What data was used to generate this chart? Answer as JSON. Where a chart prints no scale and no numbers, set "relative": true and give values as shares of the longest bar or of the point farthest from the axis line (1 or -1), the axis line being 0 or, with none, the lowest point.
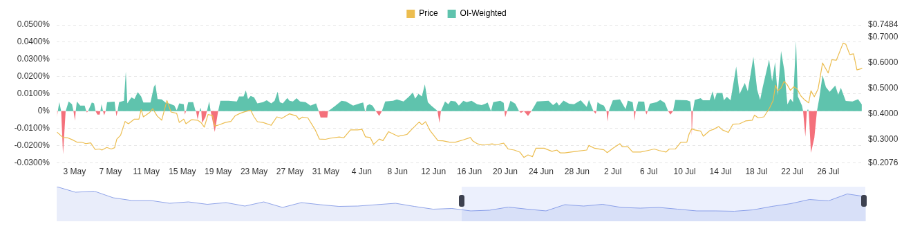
{
  "chart_data": [
    {
      "type": "area",
      "legend": "top",
      "grid": "y",
      "xlim": [
        "--05-01T00:00",
        "--07-29T20:00"
      ],
      "xticks": [
        {
          "value": "--05-03",
          "label": "3 May"
        },
        {
          "value": "--05-07",
          "label": "7 May"
        },
        {
          "value": "--05-11",
          "label": "11 May"
        },
        {
          "value": "--05-15",
          "label": "15 May"
        },
        {
          "value": "--05-19",
          "label": "19 May"
        },
        {
          "value": "--05-23",
          "label": "23 May"
        },
        {
          "value": "--05-27",
          "label": "27 May"
        },
        {
          "value": "--05-31",
          "label": "31 May"
        },
        {
          "value": "--06-04",
          "label": "4 Jun"
        },
        {
          "value": "--06-08",
          "label": "8 Jun"
        },
        {
          "value": "--06-12",
          "label": "12 Jun"
        },
        {
          "value": "--06-16",
          "label": "16 Jun"
        },
        {
          "value": "--06-20",
          "label": "20 Jun"
        },
        {
          "value": "--06-24",
          "label": "24 Jun"
        },
        {
          "value": "--06-28",
          "label": "28 Jun"
        },
        {
          "value": "--07-02",
          "label": "2 Jul"
        },
        {
          "value": "--07-06",
          "label": "6 Jul"
        },
        {
          "value": "--07-10",
          "label": "10 Jul"
        },
        {
          "value": "--07-14",
          "label": "14 Jul"
        },
        {
          "value": "--07-18",
          "label": "18 Jul"
        },
        {
          "value": "--07-22",
          "label": "22 Jul"
        },
        {
          "value": "--07-26",
          "label": "26 Jul"
        }
      ],
      "ylim": [
        -0.03,
        0.05
      ],
      "yticks": [
        {
          "value": -0.03,
          "label": "-0.0300%"
        },
        {
          "value": -0.02,
          "label": "-0.0200%"
        },
        {
          "value": -0.01,
          "label": "-0.0100%"
        },
        {
          "value": 0,
          "label": "0%"
        },
        {
          "value": 0.01,
          "label": "0.0100%"
        },
        {
          "value": 0.02,
          "label": "0.0200%"
        },
        {
          "value": 0.03,
          "label": "0.0300%"
        },
        {
          "value": 0.04,
          "label": "0.0400%"
        },
        {
          "value": 0.05,
          "label": "0.0500%"
        }
      ],
      "y2lim": [
        0.2076,
        0.7484
      ],
      "y2ticks": [
        {
          "value": 0.2076,
          "label": "$0.2076"
        },
        {
          "value": 0.3,
          "label": "$0.3000"
        },
        {
          "value": 0.4,
          "label": "$0.4000"
        },
        {
          "value": 0.5,
          "label": "$0.5000"
        },
        {
          "value": 0.6,
          "label": "$0.6000"
        },
        {
          "value": 0.7,
          "label": "$0.7000"
        },
        {
          "value": 0.7484,
          "label": "$0.7484"
        }
      ],
      "series": [
        {
          "name": "Price",
          "type": "line",
          "axis": "y2",
          "color": "#ecbd4f",
          "x": [
            "--05-01T01:00",
            "--05-01T17:00",
            "--05-02T05:00",
            "--05-02T17:00",
            "--05-03T06:00",
            "--05-03T18:00",
            "--05-04T06:00",
            "--05-04T19:00",
            "--05-05T07:00",
            "--05-05T19:00",
            "--05-06T01:00",
            "--05-06T14:00",
            "--05-07T02:00",
            "--05-07T11:00",
            "--05-07T17:00",
            "--05-08T03:00",
            "--05-08T15:00",
            "--05-09T00:00",
            "--05-09T16:00",
            "--05-10T04:00",
            "--05-10T10:00",
            "--05-10T16:00",
            "--05-11T08:00",
            "--05-11T17:00",
            "--05-12T05:00",
            "--05-12T17:00",
            "--05-13T07:00",
            "--05-13T18:00",
            "--05-14T09:00",
            "--05-14T16:00",
            "--05-15T04:00",
            "--05-15T10:00",
            "--05-16T01:00",
            "--05-16T17:00",
            "--05-17T02:00",
            "--05-17T11:00",
            "--05-17T21:00",
            "--05-18T09:00",
            "--05-18T15:00",
            "--05-19T03:00",
            "--05-19T19:00",
            "--05-20T10:00",
            "--05-20T22:00",
            "--05-21T11:00",
            "--05-21T23:00",
            "--05-22T15:00",
            "--05-23T00:00",
            "--05-23T09:00",
            "--05-24T00:00",
            "--05-24T22:00",
            "--05-25T13:00",
            "--05-26T02:00",
            "--05-26T23:00",
            "--05-27T18:00",
            "--05-28T00:00",
            "--05-28T09:00",
            "--05-29T00:00",
            "--05-29T19:00",
            "--05-30T07:00",
            "--05-30T23:00",
            "--05-31T11:00",
            "--06-01T12:00",
            "--06-02T00:00",
            "--06-02T18:00",
            "--06-03T13:00",
            "--06-04T01:00",
            "--06-04T10:00",
            "--06-04T23:00",
            "--06-05T08:00",
            "--06-05T23:00",
            "--06-06T09:00",
            "--06-07T00:00",
            "--06-08T01:00",
            "--06-09T01:00",
            "--06-09T14:00",
            "--06-10T10:00",
            "--06-10T17:00",
            "--06-11T03:00",
            "--06-11T15:00",
            "--06-12T12:00",
            "--06-13T01:00",
            "--06-13T19:00",
            "--06-14T11:00",
            "--06-15T08:00",
            "--06-16T03:00",
            "--06-16T09:00",
            "--06-16T21:00",
            "--06-17T09:00",
            "--06-17T19:00",
            "--06-18T13:00",
            "--06-19T01:00",
            "--06-19T20:00",
            "--06-20T08:00",
            "--06-21T00:00",
            "--06-21T15:00",
            "--06-22T02:00",
            "--06-22T13:00",
            "--06-23T01:00",
            "--06-23T10:00",
            "--06-24T08:00",
            "--06-25T05:00",
            "--06-25T18:00",
            "--06-26T03:00",
            "--06-26T15:00",
            "--06-27T22:00",
            "--06-29T02:00",
            "--06-29T08:00",
            "--06-29T23:00",
            "--07-01T00:00",
            "--07-01T09:00",
            "--07-02T00:00",
            "--07-02T19:00",
            "--07-03T01:00",
            "--07-03T16:00",
            "--07-04T05:00",
            "--07-05T02:00",
            "--07-05T21:00",
            "--07-06T15:00",
            "--07-07T04:00",
            "--07-07T22:00",
            "--07-08T07:00",
            "--07-08T23:00",
            "--07-09T14:00",
            "--07-10T06:00",
            "--07-10T12:00",
            "--07-10T19:00",
            "--07-11T03:00",
            "--07-11T19:00",
            "--07-12T02:00",
            "--07-12T19:00",
            "--07-13T05:00",
            "--07-13T19:00",
            "--07-14T05:00",
            "--07-14T21:00",
            "--07-15T09:00",
            "--07-16T03:00",
            "--07-16T19:00",
            "--07-17T13:00",
            "--07-17T19:00",
            "--07-18T05:00",
            "--07-18T20:00",
            "--07-19T11:00",
            "--07-19T21:00",
            "--07-20T03:00",
            "--07-20T09:00",
            "--07-20T18:00",
            "--07-21T02:00",
            "--07-21T10:00",
            "--07-21T19:00",
            "--07-22T04:00",
            "--07-22T13:00",
            "--07-22T23:00",
            "--07-23T08:00",
            "--07-23T20:00",
            "--07-24T02:00",
            "--07-24T11:00",
            "--07-24T21:00",
            "--07-25T09:00",
            "--07-26T00:00",
            "--07-26T10:00",
            "--07-26T22:00",
            "--07-27T16:00",
            "--07-27T23:00",
            "--07-28T10:00",
            "--07-28T20:00",
            "--07-29T05:00",
            "--07-29T19:00"
          ],
          "values": [
            0.328,
            0.307,
            0.306,
            0.299,
            0.289,
            0.289,
            0.283,
            0.286,
            0.26,
            0.262,
            0.258,
            0.268,
            0.262,
            0.267,
            0.301,
            0.316,
            0.37,
            0.361,
            0.379,
            0.379,
            0.416,
            0.388,
            0.404,
            0.42,
            0.391,
            0.375,
            0.452,
            0.407,
            0.402,
            0.366,
            0.379,
            0.361,
            0.377,
            0.375,
            0.366,
            0.348,
            0.397,
            0.393,
            0.352,
            0.357,
            0.366,
            0.37,
            0.393,
            0.402,
            0.408,
            0.414,
            0.388,
            0.369,
            0.366,
            0.355,
            0.388,
            0.382,
            0.4,
            0.391,
            0.378,
            0.387,
            0.384,
            0.339,
            0.301,
            0.3,
            0.304,
            0.309,
            0.306,
            0.337,
            0.337,
            0.339,
            0.31,
            0.307,
            0.28,
            0.301,
            0.295,
            0.33,
            0.312,
            0.319,
            0.339,
            0.368,
            0.357,
            0.369,
            0.334,
            0.295,
            0.294,
            0.289,
            0.289,
            0.298,
            0.307,
            0.294,
            0.283,
            0.278,
            0.279,
            0.282,
            0.279,
            0.285,
            0.262,
            0.258,
            0.25,
            0.229,
            0.239,
            0.232,
            0.265,
            0.265,
            0.253,
            0.258,
            0.247,
            0.247,
            0.253,
            0.258,
            0.276,
            0.265,
            0.259,
            0.248,
            0.265,
            0.283,
            0.271,
            0.271,
            0.25,
            0.25,
            0.256,
            0.262,
            0.256,
            0.25,
            0.262,
            0.262,
            0.289,
            0.289,
            0.321,
            0.341,
            0.337,
            0.332,
            0.312,
            0.334,
            0.339,
            0.35,
            0.337,
            0.327,
            0.359,
            0.361,
            0.372,
            0.375,
            0.395,
            0.384,
            0.388,
            0.422,
            0.453,
            0.512,
            0.49,
            0.501,
            0.527,
            0.515,
            0.492,
            0.506,
            0.497,
            0.47,
            0.456,
            0.443,
            0.49,
            0.467,
            0.497,
            0.599,
            0.56,
            0.612,
            0.61,
            0.677,
            0.673,
            0.632,
            0.635,
            0.572,
            0.578
          ]
        },
        {
          "name": "OI-Weighted",
          "type": "area",
          "color": "#5fc3ad",
          "x": [
            "--05-01T03:00",
            "--05-01T07:00",
            "--05-01T12:00",
            "--05-02T00:00",
            "--05-02T08:00",
            "--05-02T17:00",
            "--05-02T21:00",
            "--05-03T03:00",
            "--05-03T06:00",
            "--05-03T15:00",
            "--05-04T03:00",
            "--05-04T07:00",
            "--05-04T12:00",
            "--05-04T22:00",
            "--05-05T04:00",
            "--05-05T08:00",
            "--05-05T21:00",
            "--05-06T00:00",
            "--05-06T04:00",
            "--05-06T11:00",
            "--05-06T15:00",
            "--05-07T11:00",
            "--05-07T14:00",
            "--05-07T19:00",
            "--05-07T23:00",
            "--05-08T12:00",
            "--05-08T17:00",
            "--05-08T21:00",
            "--05-09T08:00",
            "--05-09T16:00",
            "--05-10T01:00",
            "--05-10T10:00",
            "--05-10T16:00",
            "--05-11T11:00",
            "--05-11T20:00",
            "--05-12T00:00",
            "--05-12T06:00",
            "--05-12T17:00",
            "--05-13T03:00",
            "--05-13T15:00",
            "--05-14T03:00",
            "--05-14T09:00",
            "--05-14T16:00",
            "--05-15T04:00",
            "--05-15T06:00",
            "--05-15T10:00",
            "--05-15T16:00",
            "--05-16T05:00",
            "--05-16T11:00",
            "--05-16T13:00",
            "--05-16T22:00",
            "--05-17T01:00",
            "--05-17T03:00",
            "--05-17T18:00",
            "--05-18T00:00",
            "--05-18T04:00",
            "--05-19T00:00",
            "--05-19T06:00",
            "--05-20T04:00",
            "--05-21T02:00",
            "--05-21T08:00",
            "--05-21T20:00",
            "--05-22T02:00",
            "--05-22T08:00",
            "--05-22T15:00",
            "--05-23T00:00",
            "--05-23T09:00",
            "--05-24T00:00",
            "--05-24T10:00",
            "--05-24T22:00",
            "--05-25T07:00",
            "--05-25T15:00",
            "--05-25T21:00",
            "--05-26T05:00",
            "--05-26T17:00",
            "--05-26T23:00",
            "--05-27T08:00",
            "--05-27T18:00",
            "--05-28T03:00",
            "--05-28T18:00",
            "--05-29T07:00",
            "--05-29T22:00",
            "--05-30T05:00",
            "--05-31T06:00",
            "--05-31T14:00",
            "--06-01T02:00",
            "--06-01T18:00",
            "--06-02T06:00",
            "--06-03T01:00",
            "--06-03T19:00",
            "--06-04T04:00",
            "--06-04T09:00",
            "--06-04T11:00",
            "--06-04T14:00",
            "--06-04T21:00",
            "--06-05T05:00",
            "--06-05T14:00",
            "--06-06T06:00",
            "--06-06T15:00",
            "--06-07T12:00",
            "--06-07T22:00",
            "--06-08T16:00",
            "--06-09T07:00",
            "--06-09T17:00",
            "--06-09T23:00",
            "--06-10T08:00",
            "--06-10T17:00",
            "--06-11T01:00",
            "--06-11T09:00",
            "--06-11T18:00",
            "--06-12T09:00",
            "--06-12T11:00",
            "--06-12T20:00",
            "--06-13T07:00",
            "--06-13T16:00",
            "--06-13T22:00",
            "--06-14T11:00",
            "--06-14T20:00",
            "--06-15T08:00",
            "--06-15T17:00",
            "--06-16T06:00",
            "--06-16T21:00",
            "--06-17T09:00",
            "--06-17T19:00",
            "--06-18T01:00",
            "--06-18T10:00",
            "--06-18T16:00",
            "--06-19T11:00",
            "--06-19T20:00",
            "--06-19T22:00",
            "--06-20T05:00",
            "--06-20T14:00",
            "--06-21T03:00",
            "--06-21T13:00",
            "--06-22T02:00",
            "--06-22T22:00",
            "--06-23T13:00",
            "--06-24T20:00",
            "--06-25T08:00",
            "--06-25T18:00",
            "--06-26T00:00",
            "--06-26T12:00",
            "--06-27T03:00",
            "--06-27T16:00",
            "--06-28T10:00",
            "--06-29T02:00",
            "--06-29T08:00",
            "--06-29T20:00",
            "--06-30T04:00",
            "--06-30T07:00",
            "--06-30T15:00",
            "--07-01T00:00",
            "--07-01T07:00",
            "--07-01T13:00",
            "--07-02T00:00",
            "--07-02T19:00",
            "--07-03T10:00",
            "--07-03T16:00",
            "--07-04T05:00",
            "--07-04T08:00",
            "--07-04T13:00",
            "--07-04T20:00",
            "--07-05T12:00",
            "--07-05T15:00",
            "--07-05T21:00",
            "--07-06T03:00",
            "--07-06T21:00",
            "--07-07T07:00",
            "--07-07T19:00",
            "--07-08T04:00",
            "--07-08T17:00",
            "--07-08T23:00",
            "--07-10T06:00",
            "--07-10T15:00",
            "--07-10T18:00",
            "--07-10T22:00",
            "--07-11T03:00",
            "--07-11T19:00",
            "--07-12T01:00",
            "--07-12T19:00",
            "--07-13T03:00",
            "--07-13T08:00",
            "--07-13T14:00",
            "--07-14T05:00",
            "--07-14T09:00",
            "--07-14T17:00",
            "--07-15T03:00",
            "--07-15T18:00",
            "--07-16T03:00",
            "--07-16T17:00",
            "--07-17T01:00",
            "--07-17T16:00",
            "--07-18T02:00",
            "--07-18T10:00",
            "--07-18T17:00",
            "--07-19T10:00",
            "--07-19T18:00",
            "--07-20T02:00",
            "--07-20T09:00",
            "--07-20T18:00",
            "--07-21T03:00",
            "--07-21T11:00",
            "--07-21T19:00",
            "--07-22T02:00",
            "--07-22T10:00",
            "--07-22T15:00",
            "--07-23T02:00",
            "--07-23T05:00",
            "--07-23T15:00",
            "--07-23T18:00",
            "--07-23T20:00",
            "--07-24T18:00",
            "--07-25T00:00",
            "--07-25T09:00",
            "--07-25T18:00",
            "--07-26T04:00",
            "--07-26T19:00",
            "--07-27T03:00",
            "--07-27T10:00",
            "--07-27T23:00",
            "--07-28T17:00",
            "--07-29T08:00",
            "--07-29T18:00"
          ],
          "values": [
            0,
            0.0052,
            0,
            0,
            0.0056,
            0.004,
            0,
            0,
            0.0056,
            0.0032,
            0.0032,
            0,
            0,
            0.005,
            0.0045,
            0,
            0,
            0.004,
            0,
            0,
            0.0052,
            0.0055,
            0,
            0,
            0.0052,
            0.006,
            0.023,
            0.0045,
            0.008,
            0.007,
            0.011,
            0.0085,
            0.005,
            0.005,
            0.014,
            0.0155,
            0.007,
            0.0068,
            0.005,
            0.0043,
            0.0032,
            0.0005,
            0.0045,
            0.004,
            0,
            0,
            0.0052,
            0.0052,
            0.0005,
            0,
            0,
            0.002,
            0,
            0,
            0.0056,
            0,
            0,
            0.006,
            0.006,
            0.0056,
            0.0085,
            0.0085,
            0.012,
            0.007,
            0.0088,
            0.008,
            0.0045,
            0.0052,
            0.0063,
            0.0045,
            0.006,
            0.0112,
            0.0052,
            0.0045,
            0.0076,
            0.006,
            0.0056,
            0.0075,
            0.0056,
            0.0052,
            0.0032,
            0.0045,
            0,
            0,
            0.0012,
            0.0032,
            0.006,
            0.0056,
            0.0032,
            0.0045,
            0.005,
            0,
            0,
            0.0032,
            0.004,
            0.0032,
            0,
            0,
            0.0056,
            0.006,
            0.0068,
            0.0056,
            0.0085,
            0.0108,
            0.0072,
            0.01,
            0.0085,
            0.0155,
            0.0052,
            0.0032,
            0.0005,
            0,
            0,
            0.0056,
            0.004,
            0.006,
            0.0056,
            0.0032,
            0.006,
            0.0052,
            0.006,
            0.004,
            0.0035,
            0.0043,
            0.005,
            0,
            0.0052,
            0.006,
            0.0048,
            0,
            0,
            0.006,
            0.0043,
            0,
            0,
            0,
            0.0056,
            0.006,
            0.0035,
            0.0052,
            0.0032,
            0.0061,
            0.0043,
            0.004,
            0.0063,
            0.0025,
            0.0065,
            0,
            0,
            0.0052,
            0.004,
            0.0032,
            0,
            0,
            0.0063,
            0.0068,
            0.0012,
            0.0061,
            0.0052,
            0,
            0,
            0.0056,
            0.0055,
            0,
            0,
            0.0043,
            0.0052,
            0.0065,
            0.0048,
            0,
            0,
            0.0065,
            0.0063,
            0.0056,
            0,
            0,
            0.0065,
            0.0075,
            0.0063,
            0.0063,
            0.0115,
            0.0065,
            0.0105,
            0.0105,
            0.0063,
            0.0083,
            0.0063,
            0.0259,
            0.0099,
            0.0163,
            0.0115,
            0.0315,
            0.0125,
            0.0065,
            0.0139,
            0.0299,
            0.0172,
            0.0285,
            0.0092,
            0.0349,
            0.0232,
            0.0039,
            0.0072,
            0.0052,
            0.0408,
            0.0085,
            0.0032,
            0,
            0,
            0.0012,
            0,
            0,
            0.0072,
            0.0208,
            0.0139,
            0.0112,
            0.0148,
            0.0095,
            0.0135,
            0.0059,
            0.0056,
            0.0069,
            0.0039
          ]
        },
        {
          "type": "area",
          "color": "#f4707b",
          "x": [
            "--05-01T01:00",
            "--05-01T03:00",
            "--05-01T12:00",
            "--05-01T17:00",
            "--05-02T00:00",
            "--05-02T21:00",
            "--05-03T01:00",
            "--05-03T03:00",
            "--05-04T07:00",
            "--05-04T09:00",
            "--05-04T12:00",
            "--05-05T08:00",
            "--05-05T13:00",
            "--05-05T19:00",
            "--05-05T21:00",
            "--05-06T04:00",
            "--05-06T07:00",
            "--05-06T11:00",
            "--05-07T14:00",
            "--05-07T16:00",
            "--05-07T19:00",
            "--05-15T06:00",
            "--05-15T07:00",
            "--05-15T10:00",
            "--05-16T13:00",
            "--05-16T17:00",
            "--05-16T22:00",
            "--05-17T03:00",
            "--05-17T05:00",
            "--05-17T14:00",
            "--05-17T18:00",
            "--05-18T04:00",
            "--05-18T15:00",
            "--05-19T00:00",
            "--05-30T05:00",
            "--05-30T10:00",
            "--05-31T04:00",
            "--05-31T06:00",
            "--06-04T09:00",
            "--06-04T10:00",
            "--06-04T11:00",
            "--06-05T14:00",
            "--06-05T23:00",
            "--06-06T06:00",
            "--06-12T11:00",
            "--06-12T16:00",
            "--06-12T20:00",
            "--06-19T22:00",
            "--06-20T00:00",
            "--06-20T05:00",
            "--06-21T13:00",
            "--06-21T18:00",
            "--06-22T02:00",
            "--06-22T13:00",
            "--06-22T22:00",
            "--06-29T20:00",
            "--06-30T02:00",
            "--06-30T04:00",
            "--07-01T07:00",
            "--07-01T10:00",
            "--07-01T13:00",
            "--07-04T08:00",
            "--07-04T10:00",
            "--07-04T13:00",
            "--07-05T15:00",
            "--07-05T18:00",
            "--07-05T21:00",
            "--07-08T04:00",
            "--07-08T10:00",
            "--07-08T17:00",
            "--07-10T18:00",
            "--07-10T19:00",
            "--07-10T22:00",
            "--07-23T05:00",
            "--07-23T11:00",
            "--07-23T15:00",
            "--07-23T20:00",
            "--07-24T02:00",
            "--07-24T11:00",
            "--07-24T18:00"
          ],
          "values": [
            -0.0035,
            0,
            0,
            -0.025,
            0,
            0,
            -0.0055,
            0,
            0,
            -0.0008,
            0,
            0,
            -0.002,
            -0.002,
            0,
            0,
            -0.0024,
            0,
            0,
            -0.003,
            0,
            0,
            -0.002,
            0,
            0,
            -0.0048,
            0,
            0,
            -0.0068,
            -0.0035,
            0,
            0,
            -0.012,
            0,
            0,
            -0.0037,
            -0.0037,
            0,
            0,
            -0.0005,
            0,
            0,
            -0.0028,
            0,
            0,
            -0.0068,
            0,
            0,
            -0.0035,
            0,
            0,
            -0.001,
            0,
            -0.0028,
            0,
            0,
            -0.0015,
            0,
            0,
            -0.006,
            0,
            0,
            -0.0055,
            0,
            0,
            -0.002,
            0,
            0,
            -0.002,
            0,
            0,
            -0.0141,
            0,
            0,
            -0.0148,
            0,
            0,
            -0.0241,
            -0.0155,
            0
          ]
        }
      ]
    },
    {
      "type": "area",
      "relative": true,
      "color": "#8fa3e8",
      "categories": [
        null,
        null,
        null,
        null,
        null,
        null,
        null,
        null,
        null,
        null,
        null,
        null,
        null,
        null,
        null,
        null,
        null,
        null,
        null,
        null,
        null,
        null,
        null,
        null,
        null,
        null,
        null,
        null,
        null,
        null,
        null,
        null,
        null,
        null,
        null,
        null,
        null,
        null,
        null,
        null,
        null,
        null,
        null,
        null
      ],
      "values": [
        1,
        0.84,
        0.87,
        0.68,
        0.6,
        0.6,
        0.52,
        0.56,
        0.49,
        0.54,
        0.44,
        0.56,
        0.4,
        0.54,
        0.48,
        0.43,
        0.44,
        0.48,
        0.52,
        0.43,
        0.35,
        0.37,
        0.3,
        0.32,
        0.41,
        0.35,
        0.3,
        0.48,
        0.44,
        0.49,
        0.4,
        0.38,
        0.4,
        0.35,
        0.3,
        0.3,
        0.29,
        0.33,
        0.43,
        0.51,
        0.63,
        0.59,
        0.79,
        0.71
      ]
    }
  ]
}
